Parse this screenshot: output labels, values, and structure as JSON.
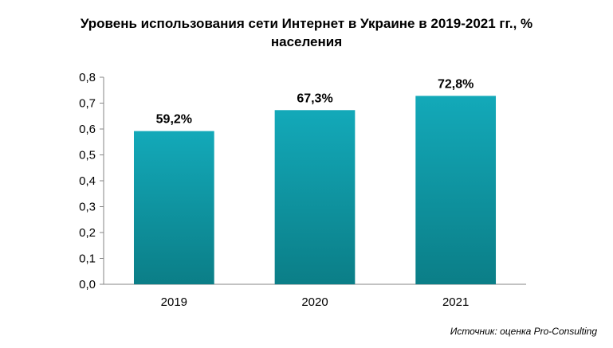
{
  "chart_data": {
    "type": "bar",
    "title_line1": "Уровень использования сети Интернет в Украине в 2019-2021 гг., %",
    "title_line2": "населения",
    "categories": [
      "2019",
      "2020",
      "2021"
    ],
    "values": [
      0.592,
      0.673,
      0.728
    ],
    "data_labels": [
      "59,2%",
      "67,3%",
      "72,8%"
    ],
    "ylim": [
      0,
      0.8
    ],
    "yticks": [
      "0,0",
      "0,1",
      "0,2",
      "0,3",
      "0,4",
      "0,5",
      "0,6",
      "0,7",
      "0,8"
    ],
    "grid": false,
    "legend": "none",
    "bar_color_top": "#13a9b9",
    "bar_color_bottom": "#0b7e87"
  },
  "source": "Источник: оценка Pro-Consulting"
}
